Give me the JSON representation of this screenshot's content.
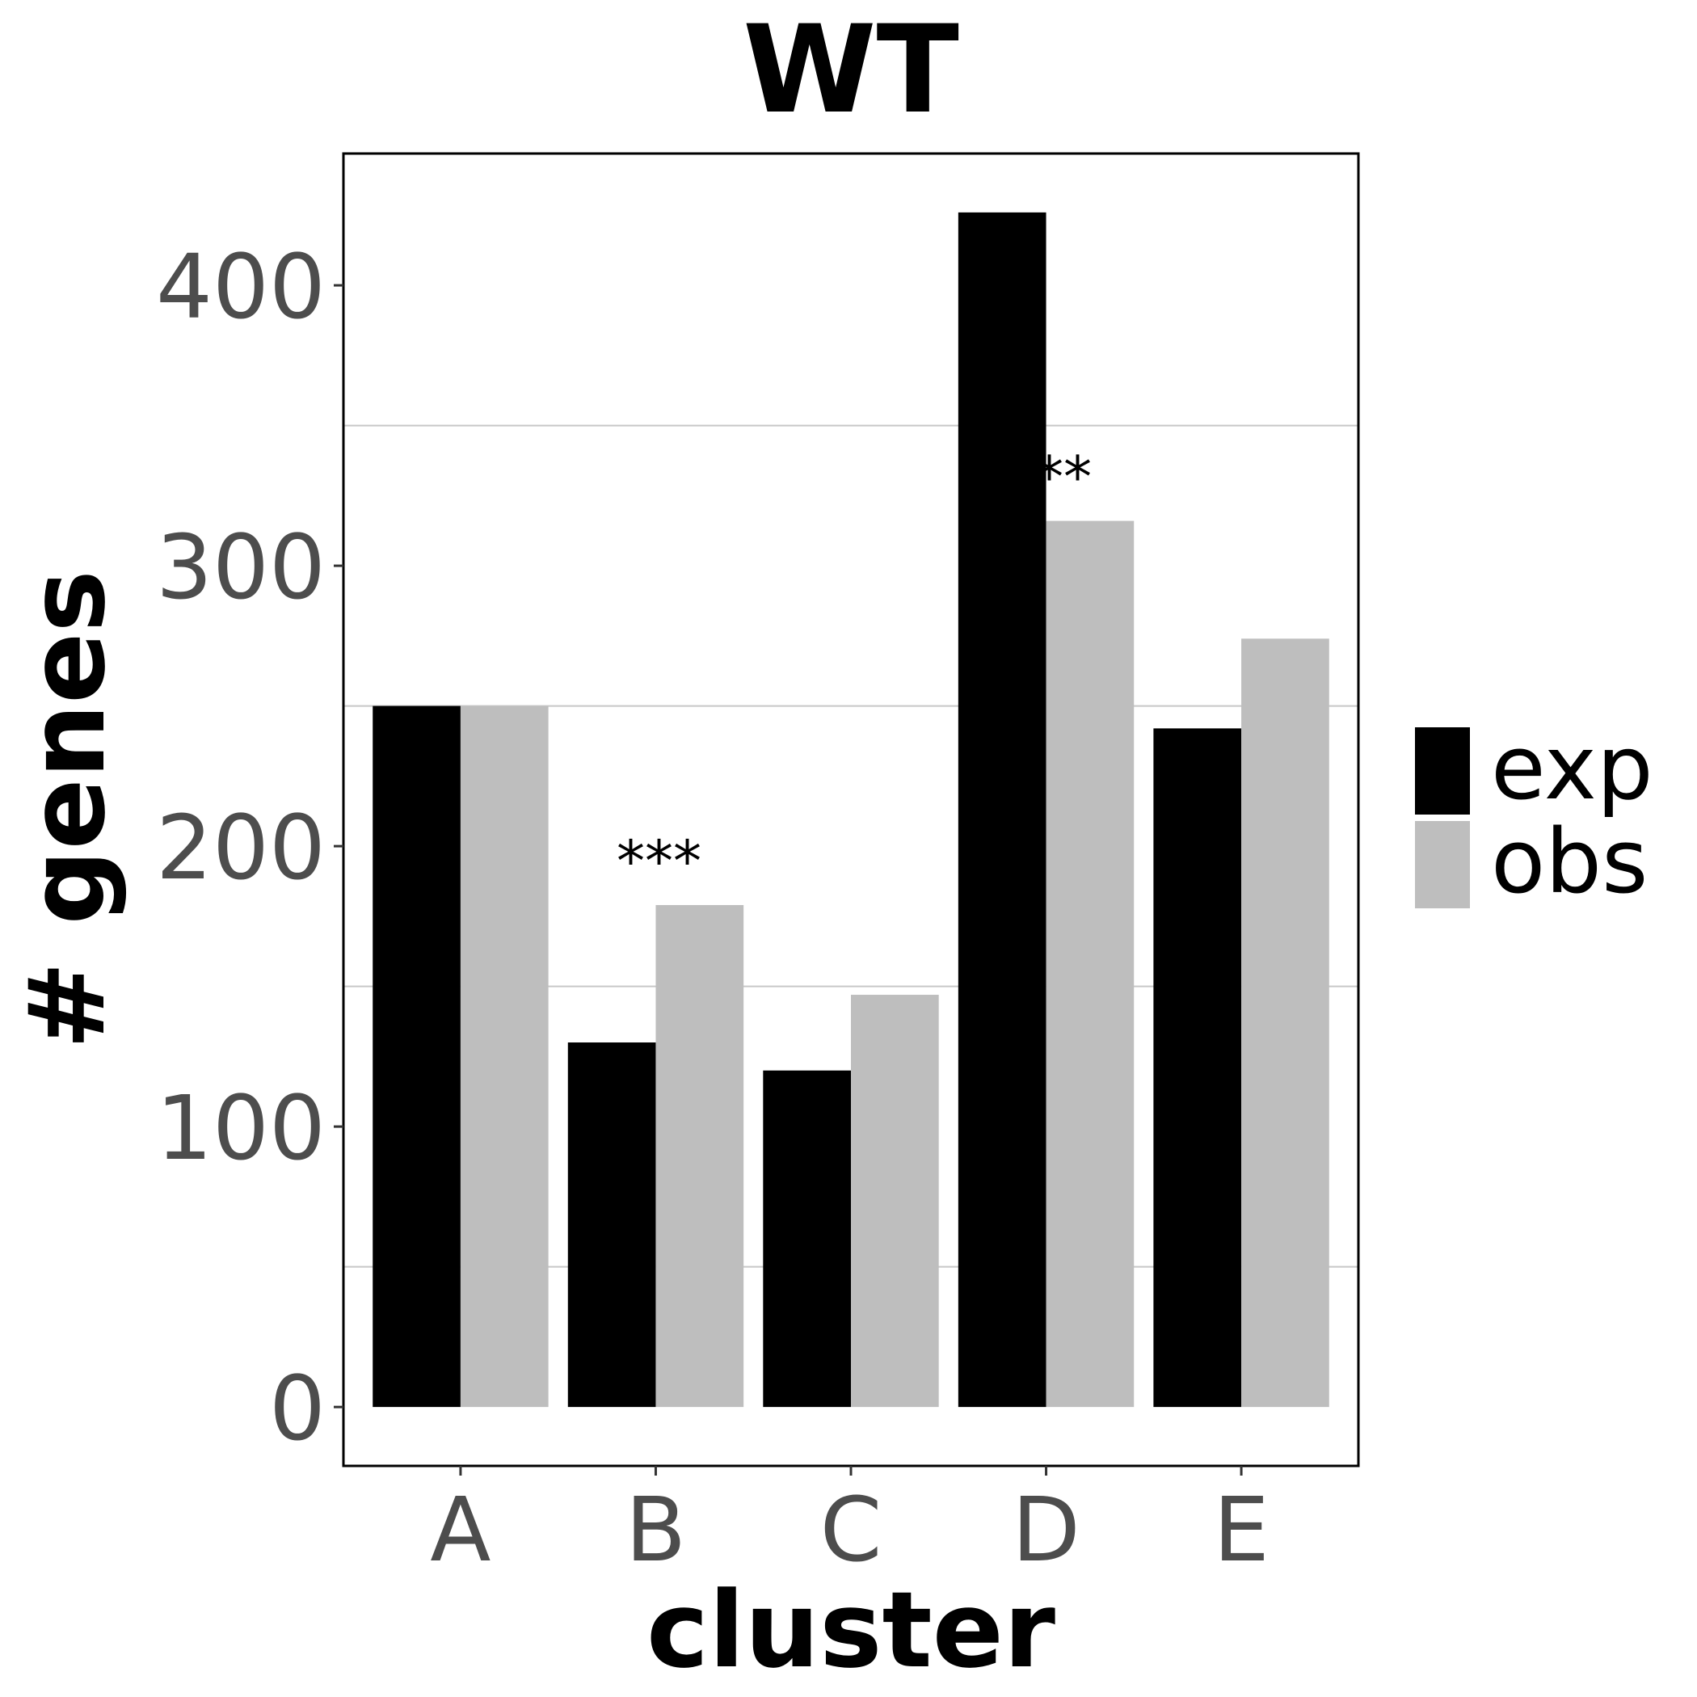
{
  "chart_data": {
    "type": "bar",
    "title": "WT",
    "xlabel": "cluster",
    "ylabel": "# genes",
    "categories": [
      "A",
      "B",
      "C",
      "D",
      "E"
    ],
    "series": [
      {
        "name": "exp",
        "color": "#000000",
        "values": [
          250,
          130,
          120,
          426,
          242
        ]
      },
      {
        "name": "obs",
        "color": "#bebebe",
        "values": [
          250,
          179,
          147,
          316,
          274
        ]
      }
    ],
    "annotations": [
      {
        "category": "B",
        "text": "***"
      },
      {
        "category": "D",
        "text": "***"
      }
    ],
    "ylim": [
      -21,
      447
    ],
    "yticks": [
      0,
      100,
      200,
      300,
      400
    ],
    "minor_gridlines": [
      50,
      150,
      250,
      350
    ],
    "grid": "minor-horizontal",
    "legend_position": "right"
  }
}
